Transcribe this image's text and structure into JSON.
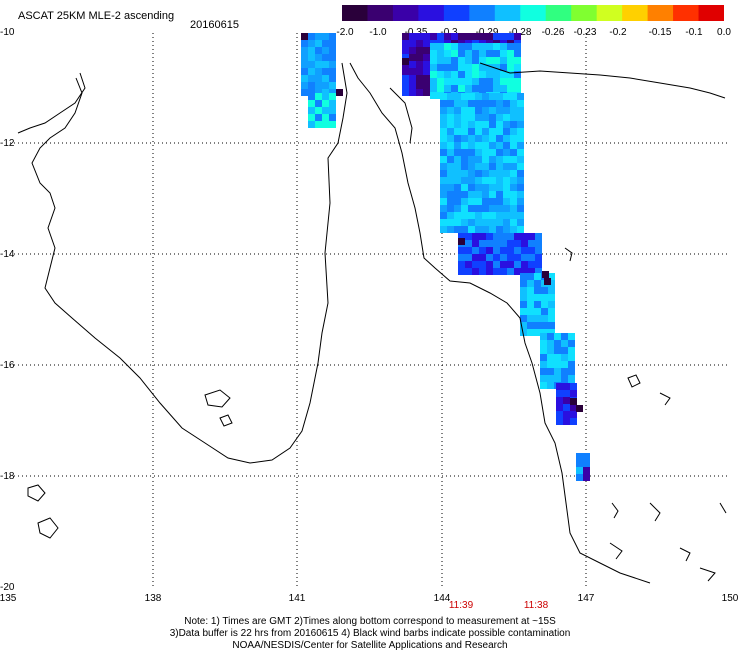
{
  "header": {
    "title": "ASCAT 25KM MLE-2 ascending",
    "date": "20160615"
  },
  "colorbar": {
    "labels": [
      "-2.0",
      "-1.0",
      "-0.35",
      "-0.3",
      "-0.29",
      "-0.28",
      "-0.26",
      "-0.23",
      "-0.2",
      "-0.15",
      "-0.1",
      "0.0"
    ],
    "colors": [
      "#2a003a",
      "#3a0070",
      "#3a00a8",
      "#2a10e0",
      "#1040ff",
      "#1080ff",
      "#10c0ff",
      "#10ffe0",
      "#30ff80",
      "#80ff30",
      "#d0ff20",
      "#ffd000",
      "#ff8000",
      "#ff3000",
      "#e00000"
    ]
  },
  "map": {
    "lat_labels": [
      "-10",
      "-12",
      "-14",
      "-16",
      "-18",
      "-20"
    ],
    "lon_labels": [
      "135",
      "138",
      "141",
      "144",
      "147",
      "150"
    ],
    "time_labels": [
      "11:39",
      "11:38"
    ]
  },
  "notes": [
    "Note: 1) Times are GMT 2)Times along bottom correspond to measurement at ~15S",
    "3)Data buffer is 22 hrs from 20160615 4) Black wind barbs indicate possible contamination",
    "NOAA/NESDIS/Center for Satellite Applications and Research"
  ]
}
